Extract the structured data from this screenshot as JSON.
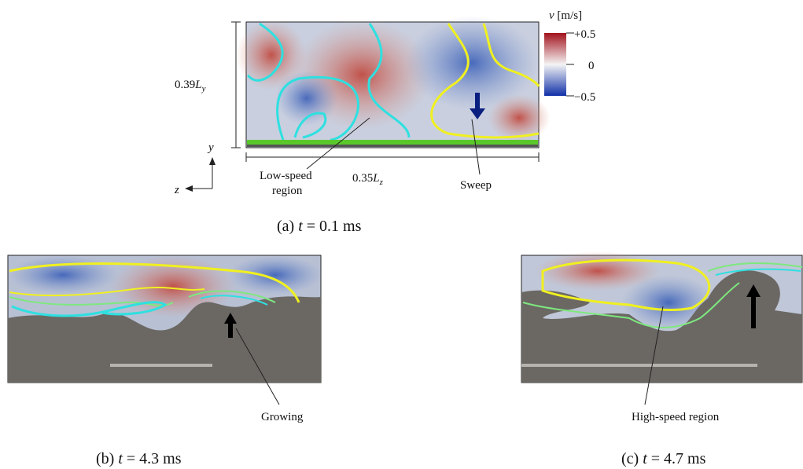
{
  "colorbar": {
    "title": {
      "var": "v",
      "unit": "[m/s]"
    },
    "labels": [
      "+0.5",
      "0",
      "−0.5"
    ]
  },
  "panel_a": {
    "height_label": {
      "prefix": "0.39",
      "var": "L",
      "sub": "y"
    },
    "width_label": {
      "prefix": "0.35",
      "var": "L",
      "sub": "z"
    },
    "axis_y": "y",
    "axis_z": "z",
    "annotations": [
      "Low-speed",
      "region",
      "Sweep"
    ],
    "caption": {
      "label": "(a)",
      "var": "t",
      "rest": "= 0.1 ms"
    }
  },
  "panel_b": {
    "annotation": "Growing",
    "caption": {
      "label": "(b)",
      "var": "t",
      "rest": "= 4.3 ms"
    }
  },
  "panel_c": {
    "annotation": "High-speed region",
    "caption": {
      "label": "(c)",
      "var": "t",
      "rest": "= 4.7 ms"
    }
  }
}
